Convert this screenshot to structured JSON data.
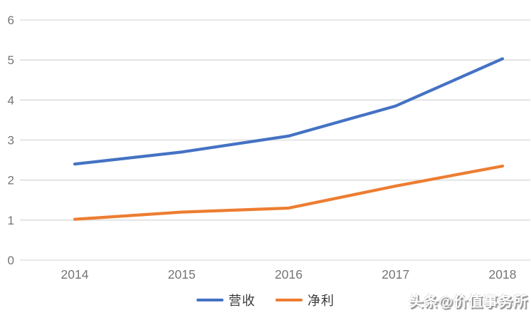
{
  "chart_data": {
    "type": "line",
    "x": [
      "2014",
      "2015",
      "2016",
      "2017",
      "2018"
    ],
    "series": [
      {
        "name": "营收",
        "color": "#4472C4",
        "values": [
          2.4,
          2.7,
          3.1,
          3.85,
          5.03
        ]
      },
      {
        "name": "净利",
        "color": "#ED7D31",
        "values": [
          1.02,
          1.2,
          1.3,
          1.85,
          2.35
        ]
      }
    ],
    "title": "",
    "xlabel": "",
    "ylabel": "",
    "ylim": [
      0,
      6
    ],
    "yticks": [
      0,
      1,
      2,
      3,
      4,
      5,
      6
    ],
    "grid": "horizontal-only",
    "legend_position": "bottom-center"
  },
  "colors": {
    "background": "#FFFFFF",
    "gridline": "#D9D9D9",
    "axis_label": "#757575",
    "legend_text": "#3B3B3B"
  },
  "watermark": {
    "text": "头条@价值事务所"
  }
}
